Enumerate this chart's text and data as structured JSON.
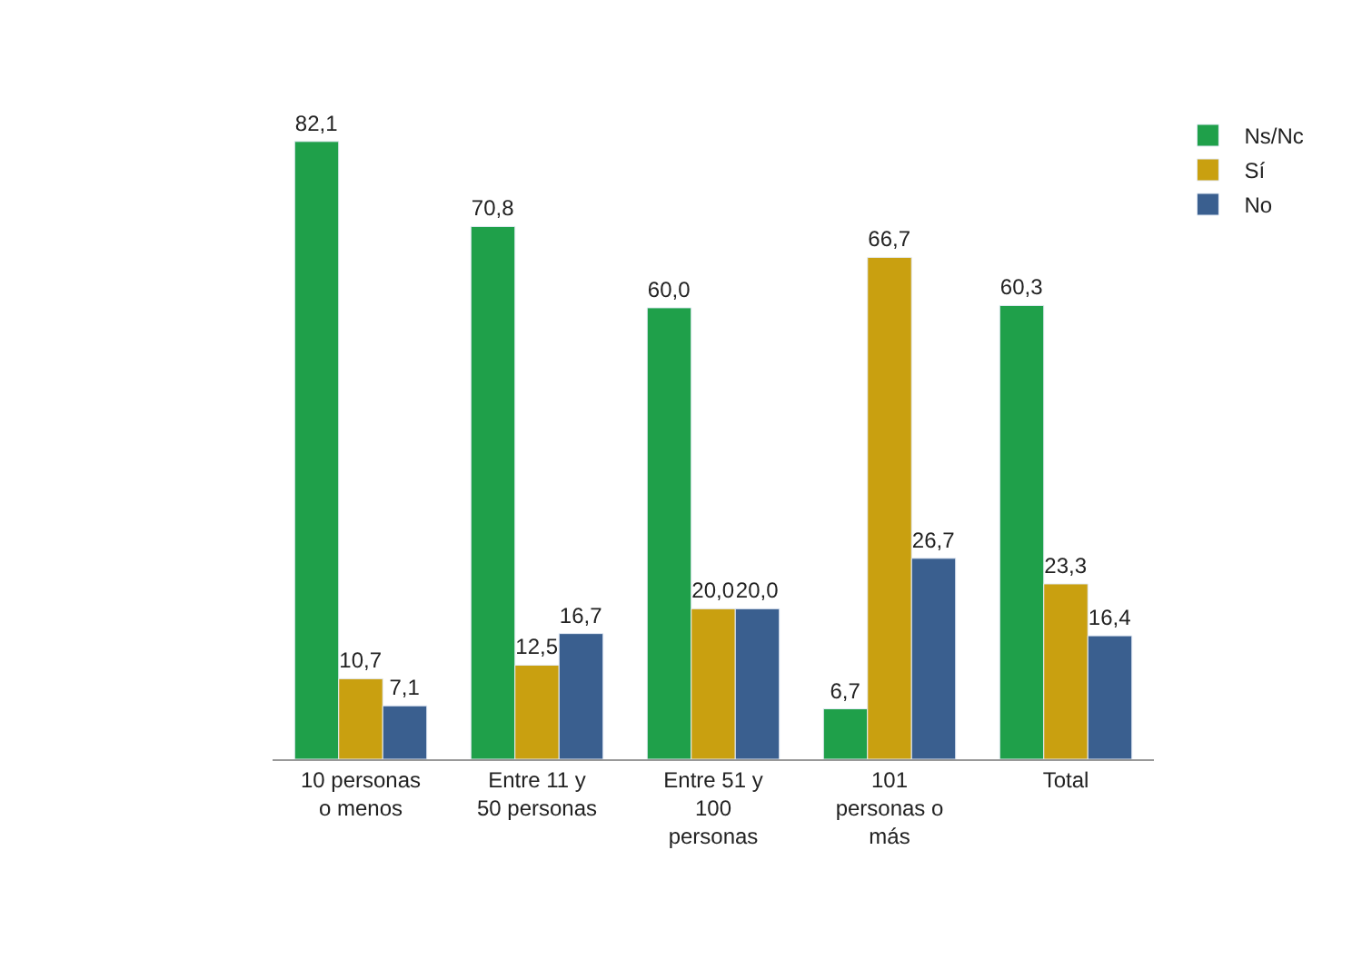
{
  "chart_data": {
    "type": "bar",
    "categories": [
      "10 personas o menos",
      "Entre 11 y 50 personas",
      "Entre 51 y 100 personas",
      "101 personas o más",
      "Total"
    ],
    "series": [
      {
        "name": "Ns/Nc",
        "color": "#1fa04a",
        "values": [
          82.1,
          70.8,
          60.0,
          6.7,
          60.3
        ],
        "value_labels": [
          "82,1",
          "70,8",
          "60,0",
          "6,7",
          "60,3"
        ]
      },
      {
        "name": "Sí",
        "color": "#c9a010",
        "values": [
          10.7,
          12.5,
          20.0,
          66.7,
          23.3
        ],
        "value_labels": [
          "10,7",
          "12,5",
          "20,0",
          "66,7",
          "23,3"
        ]
      },
      {
        "name": "No",
        "color": "#3a5f8f",
        "values": [
          7.1,
          16.7,
          20.0,
          26.7,
          16.4
        ],
        "value_labels": [
          "7,1",
          "16,7",
          "20,0",
          "26,7",
          "16,4"
        ]
      }
    ],
    "tick_labels": "x",
    "legend": "top right"
  }
}
